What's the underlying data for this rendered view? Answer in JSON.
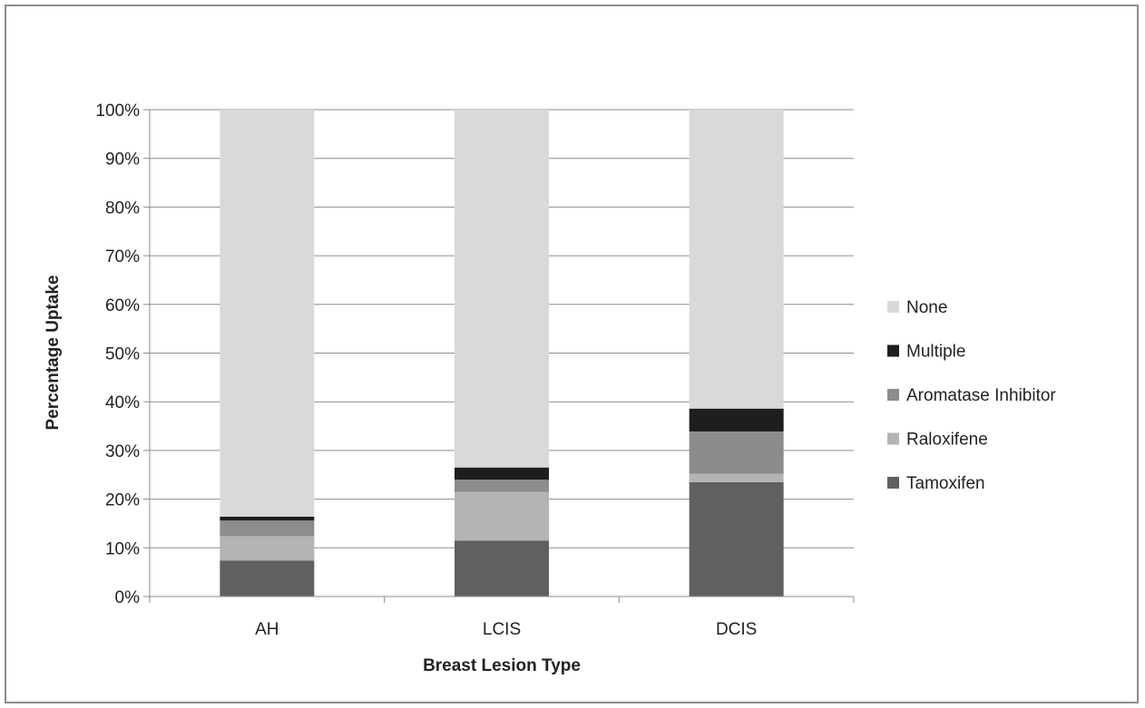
{
  "chart_data": {
    "type": "bar",
    "stacked": true,
    "percent_stacked": true,
    "title": "",
    "xlabel": "Breast Lesion Type",
    "ylabel": "Percentage Uptake",
    "categories": [
      "AH",
      "LCIS",
      "DCIS"
    ],
    "ylim": [
      0,
      100
    ],
    "y_ticks": [
      "0%",
      "10%",
      "20%",
      "30%",
      "40%",
      "50%",
      "60%",
      "70%",
      "80%",
      "90%",
      "100%"
    ],
    "grid": "horizontal",
    "legend_position": "right",
    "series": [
      {
        "name": "Tamoxifen",
        "color": "#606060",
        "values": [
          7.4,
          11.5,
          23.5
        ]
      },
      {
        "name": "Raloxifene",
        "color": "#b4b4b4",
        "values": [
          5.0,
          10.0,
          1.7
        ]
      },
      {
        "name": "Aromatase Inhibitor",
        "color": "#8c8c8c",
        "values": [
          3.2,
          2.5,
          8.7
        ]
      },
      {
        "name": "Multiple",
        "color": "#1e1e1e",
        "values": [
          0.8,
          2.5,
          4.7
        ]
      },
      {
        "name": "None",
        "color": "#d9d9d9",
        "values": [
          83.6,
          73.5,
          61.4
        ]
      }
    ]
  }
}
